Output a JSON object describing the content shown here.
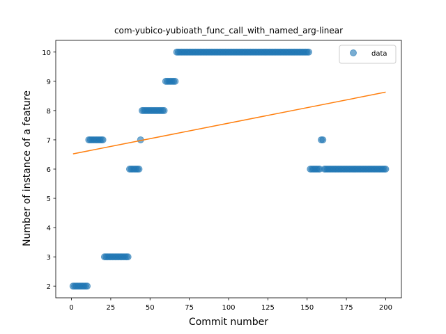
{
  "chart_data": {
    "type": "scatter",
    "title": "com-yubico-yubioath_func_call_with_named_arg-linear",
    "xlabel": "Commit number",
    "ylabel": "Number of instance of a feature",
    "xlim": [
      -10,
      210
    ],
    "ylim": [
      1.6,
      10.4
    ],
    "xticks": [
      0,
      25,
      50,
      75,
      100,
      125,
      150,
      175,
      200
    ],
    "yticks": [
      2,
      3,
      4,
      5,
      6,
      7,
      8,
      9,
      10
    ],
    "grid": false,
    "legend_position": "top-right",
    "series": [
      {
        "name": "data",
        "kind": "scatter",
        "color": "#1f77b4",
        "segments": [
          {
            "from": 1,
            "to": 10,
            "y": 2
          },
          {
            "from": 11,
            "to": 20,
            "y": 7
          },
          {
            "from": 21,
            "to": 36,
            "y": 3
          },
          {
            "from": 37,
            "to": 43,
            "y": 6
          },
          {
            "from": 44,
            "to": 44,
            "y": 7
          },
          {
            "from": 45,
            "to": 59,
            "y": 8
          },
          {
            "from": 60,
            "to": 66,
            "y": 9
          },
          {
            "from": 67,
            "to": 151,
            "y": 10
          },
          {
            "from": 152,
            "to": 158,
            "y": 6
          },
          {
            "from": 159,
            "to": 160,
            "y": 7
          },
          {
            "from": 161,
            "to": 200,
            "y": 6
          }
        ]
      },
      {
        "name": "",
        "kind": "line",
        "color": "#ff7f0e",
        "x": [
          1,
          200
        ],
        "y": [
          6.52,
          8.63
        ]
      }
    ]
  }
}
